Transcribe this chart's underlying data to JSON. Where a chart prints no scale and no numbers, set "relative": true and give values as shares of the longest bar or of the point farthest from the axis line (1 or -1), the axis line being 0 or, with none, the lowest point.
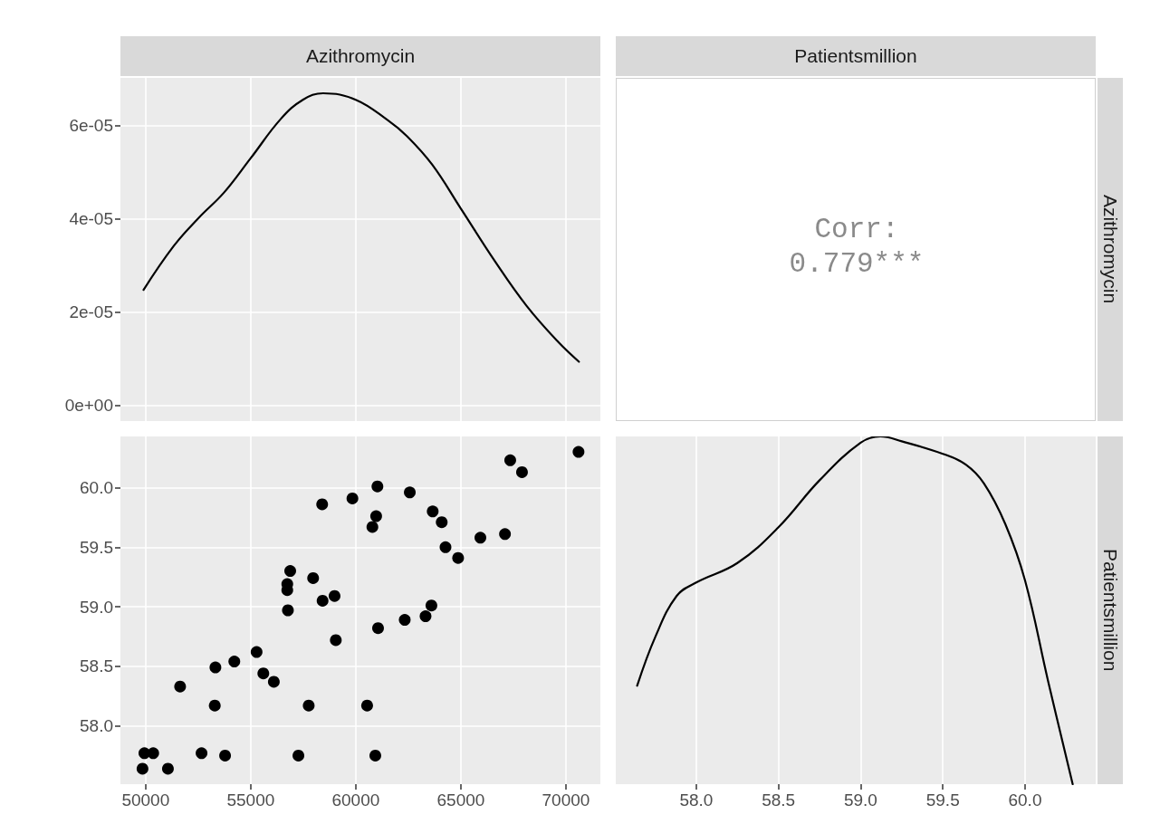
{
  "chart_data": [
    {
      "type": "line",
      "title": "Azithromycin",
      "xlim": [
        48800,
        71640
      ],
      "xticks": [
        50000,
        55000,
        60000,
        65000,
        70000
      ],
      "ylim": [
        -3.3e-06,
        7.02e-05
      ],
      "yticks": [
        {
          "value": 0,
          "label": "0e+00"
        },
        {
          "value": 2e-05,
          "label": "2e-05"
        },
        {
          "value": 4e-05,
          "label": "4e-05"
        },
        {
          "value": 6e-05,
          "label": "6e-05"
        }
      ],
      "tick_labels": "y",
      "grid": true,
      "marker": "none",
      "line_style": "solid",
      "series": [
        {
          "color": "#000000",
          "x": [
            49900,
            51320,
            52520,
            53720,
            55000,
            56430,
            57480,
            58450,
            60000,
            61530,
            62440,
            63640,
            65000,
            66640,
            68140,
            69640,
            70620
          ],
          "values": [
            2.48e-05,
            3.41e-05,
            4.02e-05,
            4.56e-05,
            5.3e-05,
            6.14e-05,
            6.55e-05,
            6.69e-05,
            6.55e-05,
            6.11e-05,
            5.77e-05,
            5.16e-05,
            4.22e-05,
            3.08e-05,
            2.13e-05,
            1.36e-05,
            9.4e-06
          ]
        }
      ]
    },
    {
      "type": "other",
      "title": "Patientsmillion",
      "y2label": "Azithromycin",
      "annotations": [
        "Corr:",
        "0.779***"
      ]
    },
    {
      "type": "scatter",
      "xlim": [
        48800,
        71640
      ],
      "xticks": [
        50000,
        55000,
        60000,
        65000,
        70000
      ],
      "ylim": [
        57.51,
        60.43
      ],
      "yticks": [
        {
          "value": 58,
          "label": "58.0"
        },
        {
          "value": 58.5,
          "label": "58.5"
        },
        {
          "value": 59,
          "label": "59.0"
        },
        {
          "value": 59.5,
          "label": "59.5"
        },
        {
          "value": 60,
          "label": "60.0"
        }
      ],
      "grid": true,
      "marker": "circle",
      "series": [
        {
          "color": "#000000",
          "x": [
            49850,
            49940,
            50360,
            51060,
            52660,
            53780,
            57270,
            51640,
            53290,
            53320,
            54220,
            55280,
            55600,
            56100,
            57760,
            60540,
            56770,
            56740,
            56740,
            56880,
            57970,
            58420,
            58990,
            59050,
            58400,
            59840,
            61030,
            60970,
            60790,
            62570,
            63660,
            64090,
            64270,
            64870,
            65930,
            67100,
            67350,
            67910,
            70600,
            61060,
            62330,
            63320,
            63600,
            60930
          ],
          "values": [
            57.64,
            57.77,
            57.77,
            57.64,
            57.77,
            57.75,
            57.75,
            58.33,
            58.17,
            58.49,
            58.54,
            58.62,
            58.44,
            58.37,
            58.17,
            58.17,
            58.97,
            59.14,
            59.19,
            59.3,
            59.24,
            59.05,
            59.09,
            58.72,
            59.86,
            59.91,
            60.01,
            59.76,
            59.67,
            59.96,
            59.8,
            59.71,
            59.5,
            59.41,
            59.58,
            59.61,
            60.23,
            60.13,
            60.3,
            58.82,
            58.89,
            58.92,
            59.01,
            57.75
          ]
        }
      ]
    },
    {
      "type": "line",
      "y2label": "Patientsmillion",
      "relative": true,
      "xlim": [
        57.51,
        60.43
      ],
      "xticks": [
        {
          "value": 58,
          "label": "58.0"
        },
        {
          "value": 58.5,
          "label": "58.5"
        },
        {
          "value": 59,
          "label": "59.0"
        },
        {
          "value": 59.5,
          "label": "59.5"
        },
        {
          "value": 60,
          "label": "60.0"
        }
      ],
      "tick_labels": "x",
      "grid": true,
      "marker": "none",
      "line_style": "solid",
      "series": [
        {
          "color": "#000000",
          "x": [
            57.64,
            57.75,
            57.88,
            58.0,
            58.25,
            58.5,
            58.75,
            59.0,
            59.12,
            59.25,
            59.5,
            59.64,
            59.75,
            59.88,
            60.0,
            60.14,
            60.29
          ],
          "values": [
            0.283,
            0.423,
            0.541,
            0.58,
            0.636,
            0.739,
            0.874,
            0.982,
            1,
            0.986,
            0.95,
            0.919,
            0.865,
            0.748,
            0.586,
            0.297,
            0
          ]
        }
      ]
    }
  ]
}
